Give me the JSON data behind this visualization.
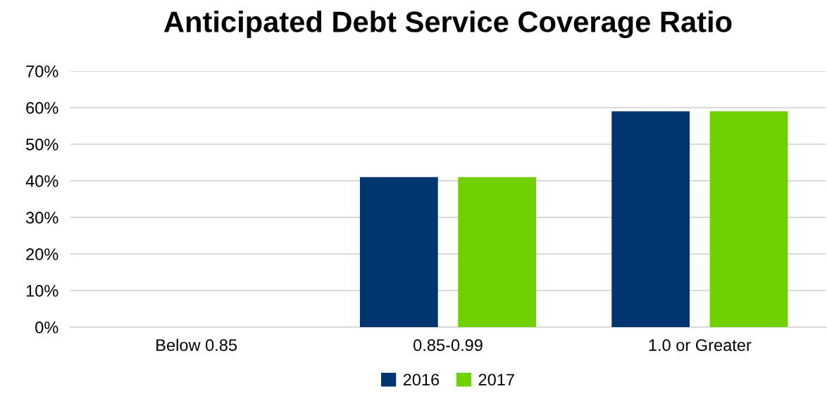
{
  "chart_data": {
    "type": "bar",
    "title": "Anticipated Debt Service Coverage Ratio",
    "categories": [
      "Below 0.85",
      "0.85-0.99",
      "1.0 or Greater"
    ],
    "series": [
      {
        "name": "2016",
        "color": "#003570",
        "values": [
          0,
          41,
          59
        ]
      },
      {
        "name": "2017",
        "color": "#70d000",
        "values": [
          0,
          41,
          59
        ]
      }
    ],
    "ylim": [
      0,
      70
    ],
    "yticks": [
      {
        "value": 0,
        "label": "0%"
      },
      {
        "value": 10,
        "label": "10%"
      },
      {
        "value": 20,
        "label": "20%"
      },
      {
        "value": 30,
        "label": "30%"
      },
      {
        "value": 40,
        "label": "40%"
      },
      {
        "value": 50,
        "label": "50%"
      },
      {
        "value": 60,
        "label": "60%"
      },
      {
        "value": 70,
        "label": "70%"
      }
    ],
    "grid": "y",
    "legend": "bottom"
  }
}
